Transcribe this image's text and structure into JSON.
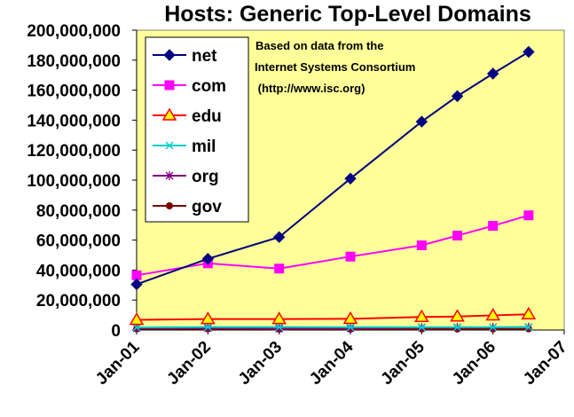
{
  "chart_data": {
    "type": "line",
    "title": "Hosts: Generic Top-Level Domains",
    "annotation": [
      "Based on data from the",
      "Internet Systems Consortium",
      " (http://www.isc.org)"
    ],
    "xlabel": "",
    "ylabel": "",
    "x_ticks": [
      {
        "label": "Jan-01",
        "x": 2001.0
      },
      {
        "label": "Jan-02",
        "x": 2002.0
      },
      {
        "label": "Jan-03",
        "x": 2003.0
      },
      {
        "label": "Jan-04",
        "x": 2004.0
      },
      {
        "label": "Jan-05",
        "x": 2005.0
      },
      {
        "label": "Jan-06",
        "x": 2006.0
      },
      {
        "label": "Jan-07",
        "x": 2007.0
      }
    ],
    "xlim": [
      2001.0,
      2007.0
    ],
    "ylim": [
      0,
      200000000
    ],
    "y_ticks": [
      "0",
      "20,000,000",
      "40,000,000",
      "60,000,000",
      "80,000,000",
      "100,000,000",
      "120,000,000",
      "140,000,000",
      "160,000,000",
      "180,000,000",
      "200,000,000"
    ],
    "x": [
      2001.0,
      2002.0,
      2003.0,
      2004.0,
      2005.0,
      2005.5,
      2006.0,
      2006.5
    ],
    "series": [
      {
        "name": "net",
        "color": "#000080",
        "marker": "diamond",
        "values": [
          30500000,
          47500000,
          62000000,
          101000000,
          139000000,
          156000000,
          171000000,
          185500000
        ]
      },
      {
        "name": "com",
        "color": "#ff00ff",
        "marker": "square",
        "values": [
          36500000,
          44500000,
          41000000,
          49000000,
          56500000,
          63000000,
          69500000,
          76500000
        ]
      },
      {
        "name": "edu",
        "color": "#ff0000",
        "marker": "triangle",
        "values": [
          6800000,
          7300000,
          7300000,
          7500000,
          8700000,
          9000000,
          9800000,
          10500000
        ]
      },
      {
        "name": "mil",
        "color": "#00cccc",
        "marker": "x",
        "values": [
          1800000,
          2000000,
          2000000,
          1900000,
          1900000,
          1900000,
          1900000,
          1900000
        ]
      },
      {
        "name": "org",
        "color": "#800080",
        "marker": "star",
        "values": [
          1300000,
          1300000,
          1000000,
          1200000,
          1600000,
          1700000,
          1800000,
          2000000
        ]
      },
      {
        "name": "gov",
        "color": "#800000",
        "marker": "circle",
        "values": [
          800000,
          800000,
          600000,
          600000,
          700000,
          700000,
          700000,
          800000
        ]
      }
    ],
    "legend_position": "top-left",
    "background": "#ffff99",
    "grid": false
  }
}
